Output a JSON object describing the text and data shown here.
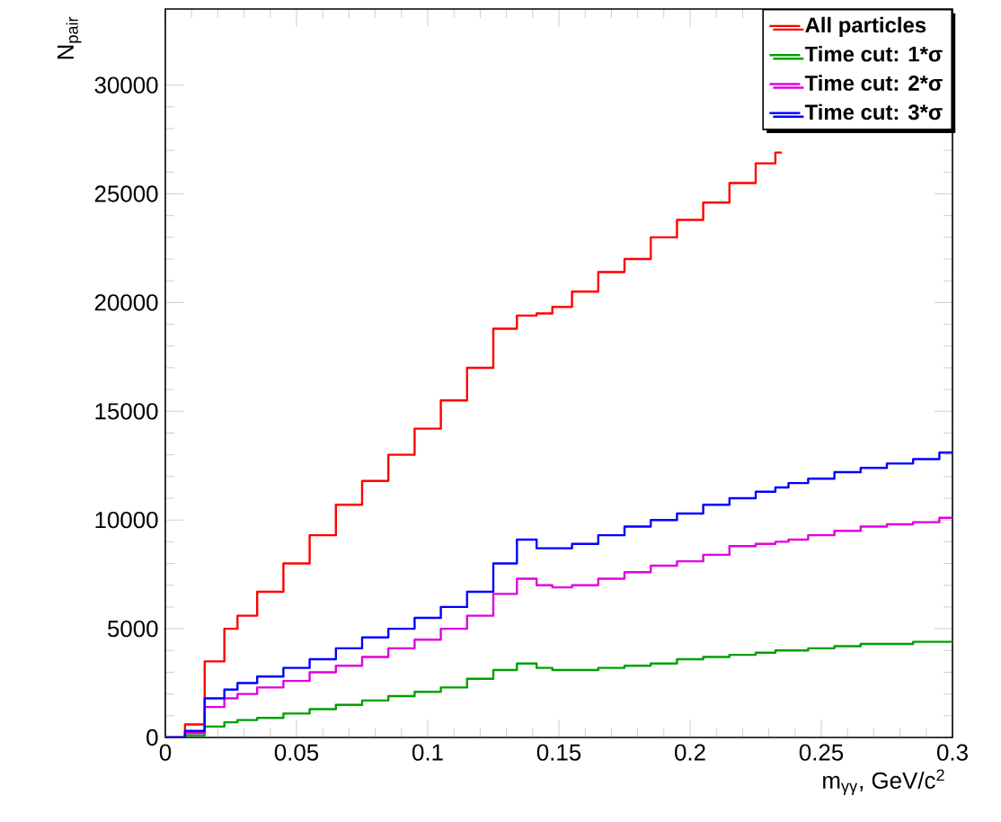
{
  "chart_data": {
    "type": "step",
    "xlabel": "m$_{γγ}$, GeV/c$^{2}$",
    "ylabel": "N$_{pair}$",
    "x": [
      0,
      0.005,
      0.01,
      0.02,
      0.025,
      0.03,
      0.04,
      0.05,
      0.06,
      0.07,
      0.08,
      0.09,
      0.1,
      0.11,
      0.12,
      0.13,
      0.138,
      0.145,
      0.15,
      0.16,
      0.17,
      0.18,
      0.19,
      0.2,
      0.21,
      0.22,
      0.23,
      0.235,
      0.24,
      0.25,
      0.26,
      0.27,
      0.28,
      0.29,
      0.3
    ],
    "series": [
      {
        "name": "All particles",
        "color": "#ff0000",
        "values": [
          0,
          0,
          600,
          3500,
          5000,
          5600,
          6700,
          8000,
          9300,
          10700,
          11800,
          13000,
          14200,
          15500,
          17000,
          18800,
          19400,
          19500,
          19800,
          20500,
          21400,
          22000,
          23000,
          23800,
          24600,
          25500,
          26400,
          26900,
          null,
          null,
          null,
          null,
          null,
          null,
          null
        ]
      },
      {
        "name": "Time cut: 1*σ",
        "color": "#00a000",
        "values": [
          0,
          0,
          100,
          500,
          700,
          800,
          900,
          1100,
          1300,
          1500,
          1700,
          1900,
          2100,
          2300,
          2700,
          3100,
          3400,
          3200,
          3100,
          3100,
          3200,
          3300,
          3400,
          3600,
          3700,
          3800,
          3900,
          4000,
          4000,
          4100,
          4200,
          4300,
          4300,
          4400,
          4400
        ]
      },
      {
        "name": "Time cut: 2*σ",
        "color": "#e000e0",
        "values": [
          0,
          0,
          200,
          1400,
          1800,
          2000,
          2300,
          2600,
          3000,
          3300,
          3700,
          4100,
          4500,
          5000,
          5600,
          6600,
          7300,
          7000,
          6900,
          7000,
          7300,
          7600,
          7900,
          8100,
          8400,
          8800,
          8900,
          9000,
          9100,
          9300,
          9500,
          9700,
          9800,
          9900,
          10100
        ]
      },
      {
        "name": "Time cut: 3*σ",
        "color": "#0000ff",
        "values": [
          0,
          0,
          300,
          1800,
          2200,
          2500,
          2800,
          3200,
          3600,
          4100,
          4600,
          5000,
          5500,
          6000,
          6700,
          8000,
          9100,
          8700,
          8700,
          8900,
          9300,
          9700,
          10000,
          10300,
          10700,
          11000,
          11300,
          11500,
          11700,
          11900,
          12200,
          12400,
          12600,
          12800,
          13100
        ]
      }
    ],
    "xlim": [
      0,
      0.3
    ],
    "ylim": [
      0,
      33500
    ],
    "xticks": [
      0,
      0.05,
      0.1,
      0.15,
      0.2,
      0.25,
      0.3
    ],
    "yticks": [
      0,
      5000,
      10000,
      15000,
      20000,
      25000,
      30000
    ],
    "grid": false,
    "legend": "top right",
    "marker": "none",
    "line_style": "solid"
  }
}
